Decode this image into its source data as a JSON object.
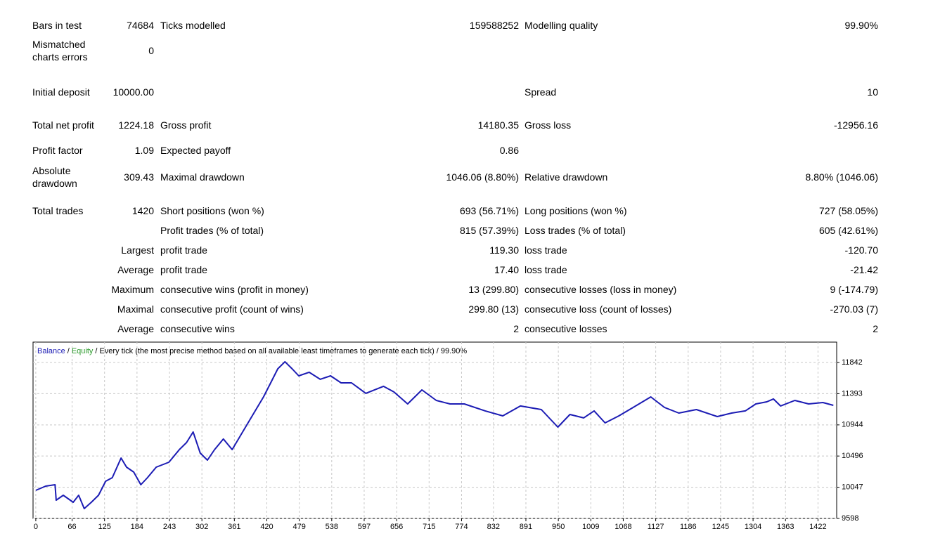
{
  "report": {
    "rows": [
      {
        "label1": "Bars in test",
        "value1": "74684",
        "label2": "Ticks modelled",
        "value2": "159588252",
        "label3": "Modelling quality",
        "value3": "99.90%"
      },
      {
        "label1": "Mismatched charts errors",
        "value1": "0"
      },
      {
        "label1": "Initial deposit",
        "value1": "10000.00",
        "label3": "Spread",
        "value3": "10"
      },
      {
        "label1": "Total net profit",
        "value1": "1224.18",
        "label2": "Gross profit",
        "value2": "14180.35",
        "label3": "Gross loss",
        "value3": "-12956.16"
      },
      {
        "label1": "Profit factor",
        "value1": "1.09",
        "label2": "Expected payoff",
        "value2": "0.86"
      },
      {
        "label1": "Absolute drawdown",
        "value1": "309.43",
        "label2": "Maximal drawdown",
        "value2": "1046.06 (8.80%)",
        "label3": "Relative drawdown",
        "value3": "8.80% (1046.06)"
      },
      {
        "label1": "Total trades",
        "value1": "1420",
        "label2": "Short positions (won %)",
        "value2": "693 (56.71%)",
        "label3": "Long positions (won %)",
        "value3": "727 (58.05%)"
      },
      {
        "label2": "Profit trades (% of total)",
        "value2": "815 (57.39%)",
        "label3": "Loss trades (% of total)",
        "value3": "605 (42.61%)"
      },
      {
        "value1": "Largest",
        "label2": "profit trade",
        "value2": "119.30",
        "label3": "loss trade",
        "value3": "-120.70"
      },
      {
        "value1": "Average",
        "label2": "profit trade",
        "value2": "17.40",
        "label3": "loss trade",
        "value3": "-21.42"
      },
      {
        "value1": "Maximum",
        "label2": "consecutive wins (profit in money)",
        "value2": "13 (299.80)",
        "label3": "consecutive losses (loss in money)",
        "value3": "9 (-174.79)"
      },
      {
        "value1": "Maximal",
        "label2": "consecutive profit (count of wins)",
        "value2": "299.80 (13)",
        "label3": "consecutive loss (count of losses)",
        "value3": "-270.03 (7)"
      },
      {
        "value1": "Average",
        "label2": "consecutive wins",
        "value2": "2",
        "label3": "consecutive losses",
        "value3": "2"
      }
    ]
  },
  "chart_data": {
    "type": "line",
    "separator": "/",
    "equity_label": {
      "text": "Equity",
      "color": "#2a9a2a"
    },
    "subtitle": "Every tick (the most precise method based on all available least timeframes to generate each tick)",
    "quality": "99.90%",
    "x": [
      0,
      18,
      35,
      37,
      50,
      68,
      78,
      88,
      101,
      114,
      127,
      139,
      155,
      165,
      178,
      191,
      203,
      219,
      242,
      261,
      274,
      286,
      299,
      312,
      325,
      341,
      357,
      376,
      395,
      414,
      427,
      440,
      453,
      466,
      478,
      497,
      517,
      536,
      555,
      574,
      600,
      632,
      651,
      676,
      702,
      728,
      753,
      779,
      817,
      849,
      881,
      919,
      949,
      971,
      996,
      1015,
      1035,
      1060,
      1086,
      1118,
      1143,
      1169,
      1201,
      1239,
      1265,
      1290,
      1309,
      1329,
      1341,
      1354,
      1380,
      1405,
      1431,
      1450
    ],
    "series": [
      {
        "name": "Balance",
        "color": "#1c1cb4",
        "values": [
          10002,
          10063,
          10083,
          9861,
          9932,
          9830,
          9932,
          9740,
          9830,
          9932,
          10134,
          10184,
          10467,
          10336,
          10265,
          10083,
          10184,
          10336,
          10407,
          10589,
          10690,
          10842,
          10538,
          10437,
          10589,
          10741,
          10589,
          10842,
          11094,
          11347,
          11549,
          11751,
          11853,
          11751,
          11650,
          11701,
          11600,
          11650,
          11549,
          11549,
          11398,
          11499,
          11418,
          11246,
          11448,
          11296,
          11246,
          11246,
          11145,
          11074,
          11216,
          11165,
          10912,
          11094,
          11044,
          11145,
          10973,
          11074,
          11195,
          11347,
          11195,
          11114,
          11165,
          11064,
          11114,
          11145,
          11246,
          11276,
          11317,
          11216,
          11296,
          11246,
          11266,
          11225
        ]
      }
    ],
    "xlim": [
      -5,
      1456
    ],
    "xticks": [
      0,
      66,
      125,
      184,
      243,
      302,
      361,
      420,
      479,
      538,
      597,
      656,
      715,
      774,
      832,
      891,
      950,
      1009,
      1068,
      1127,
      1186,
      1245,
      1304,
      1363,
      1422
    ],
    "ylim": [
      9598,
      12135
    ],
    "yticks": [
      9598,
      10047,
      10496,
      10944,
      11393,
      11842
    ],
    "grid": true
  }
}
